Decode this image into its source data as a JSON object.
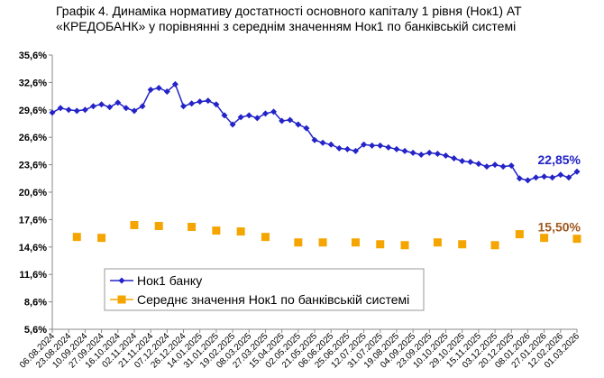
{
  "chart_data": {
    "type": "line",
    "title": "Графік 4. Динаміка нормативу достатності основного капіталу 1 рівня (Нок1) АТ «КРЕДОБАНК» у порівнянні з середнім значенням Нок1 по банківській системі",
    "categories": [
      "06.08.2024",
      null,
      "23.08.2024",
      null,
      "10.09.2024",
      null,
      "27.09.2024",
      null,
      "16.10.2024",
      null,
      "02.11.2024",
      null,
      "21.11.2024",
      null,
      "07.12.2024",
      null,
      "26.12.2024",
      null,
      "14.01.2025",
      null,
      "31.01.2025",
      null,
      "19.02.2025",
      null,
      "08.03.2025",
      null,
      "27.03.2025",
      null,
      "15.04.2025",
      null,
      "02.05.2025",
      null,
      "21.05.2025",
      null,
      "06.06.2025",
      null,
      "25.06.2025",
      null,
      "12.07.2025",
      null,
      "31.07.2025",
      null,
      "19.08.2025",
      null,
      "04.09.2025",
      null,
      "23.09.2025",
      null,
      "10.10.2025",
      null,
      "29.10.2025",
      null,
      "15.11.2025",
      null,
      "03.12.2025",
      null,
      "20.12.2025",
      null,
      "08.01.2026",
      null,
      "27.01.2026",
      null,
      "12.02.2026",
      null,
      "01.03.2026"
    ],
    "series": [
      {
        "name": "Нок1 банку",
        "color": "#2323c8",
        "marker": "diamond",
        "values": [
          29.3,
          29.8,
          29.6,
          29.5,
          29.6,
          30.0,
          30.2,
          29.9,
          30.4,
          29.8,
          29.5,
          30.0,
          31.8,
          32.0,
          31.6,
          32.4,
          30.0,
          30.3,
          30.5,
          30.6,
          30.2,
          29.0,
          28.0,
          28.8,
          29.0,
          28.7,
          29.2,
          29.4,
          28.4,
          28.5,
          28.0,
          27.6,
          26.3,
          26.0,
          25.8,
          25.4,
          25.3,
          25.1,
          25.8,
          25.7,
          25.7,
          25.5,
          25.3,
          25.1,
          24.9,
          24.7,
          24.9,
          24.8,
          24.6,
          24.3,
          24.0,
          23.9,
          23.7,
          23.4,
          23.6,
          23.4,
          23.5,
          22.1,
          21.9,
          22.2,
          22.3,
          22.2,
          22.5,
          22.2,
          22.85
        ],
        "value_labels": [
          null,
          null,
          null,
          null,
          null,
          null,
          null,
          null,
          null,
          null,
          null,
          null,
          null,
          null,
          null,
          null,
          null,
          null,
          null,
          null,
          null,
          null,
          null,
          null,
          null,
          null,
          null,
          null,
          null,
          null,
          null,
          null,
          null,
          null,
          null,
          null,
          null,
          null,
          null,
          null,
          null,
          null,
          null,
          null,
          null,
          null,
          null,
          null,
          null,
          null,
          null,
          null,
          null,
          null,
          null,
          null,
          null,
          null,
          null,
          null,
          null,
          null,
          null,
          null,
          "22,85%"
        ]
      },
      {
        "name": "Середнє значення Нок1 по банківській системі",
        "color": "#f5a500",
        "marker": "square",
        "values": [
          null,
          null,
          null,
          15.7,
          null,
          null,
          15.6,
          null,
          null,
          null,
          17.0,
          null,
          null,
          16.9,
          null,
          null,
          null,
          16.8,
          null,
          null,
          16.4,
          null,
          null,
          16.3,
          null,
          null,
          15.7,
          null,
          null,
          null,
          15.1,
          null,
          null,
          15.1,
          null,
          null,
          null,
          15.1,
          null,
          null,
          14.9,
          null,
          null,
          14.8,
          null,
          null,
          null,
          15.1,
          null,
          null,
          14.9,
          null,
          null,
          null,
          14.8,
          null,
          null,
          16.0,
          null,
          null,
          15.6,
          null,
          null,
          null,
          15.5
        ],
        "value_labels": [
          null,
          null,
          null,
          null,
          null,
          null,
          null,
          null,
          null,
          null,
          null,
          null,
          null,
          null,
          null,
          null,
          null,
          null,
          null,
          null,
          null,
          null,
          null,
          null,
          null,
          null,
          null,
          null,
          null,
          null,
          null,
          null,
          null,
          null,
          null,
          null,
          null,
          null,
          null,
          null,
          null,
          null,
          null,
          null,
          null,
          null,
          null,
          null,
          null,
          null,
          null,
          null,
          null,
          null,
          null,
          null,
          null,
          null,
          null,
          null,
          null,
          null,
          null,
          null,
          "15,50%"
        ],
        "label_color": "#a0581e"
      }
    ],
    "ylim": [
      5.6,
      35.6
    ],
    "yticks": [
      {
        "value": 5.6,
        "label": "5,6%"
      },
      {
        "value": 8.6,
        "label": "8,6%"
      },
      {
        "value": 11.6,
        "label": "11,6%"
      },
      {
        "value": 14.6,
        "label": "14,6%"
      },
      {
        "value": 17.6,
        "label": "17,6%"
      },
      {
        "value": 20.6,
        "label": "20,6%"
      },
      {
        "value": 23.6,
        "label": "23,6%"
      },
      {
        "value": 26.6,
        "label": "26,6%"
      },
      {
        "value": 29.6,
        "label": "29,6%"
      },
      {
        "value": 32.6,
        "label": "32,6%"
      },
      {
        "value": 35.6,
        "label": "35,6%"
      }
    ],
    "grid": false,
    "legend": "lower left"
  }
}
